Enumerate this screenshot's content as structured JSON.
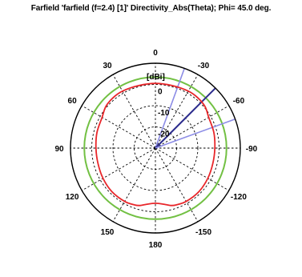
{
  "chart_data": {
    "type": "polar-line",
    "title": "Farfield 'farfield (f=2.4) [1]' Directivity_Abs(Theta); Phi=  45.0 deg.",
    "unit_label": "[dBi]",
    "radial_axis": {
      "min": -30,
      "max": 10,
      "ticks": [
        "0",
        "-10",
        "-20"
      ],
      "tick_values": [
        0,
        -10,
        -20
      ]
    },
    "angular_ticks": [
      {
        "angle": 0,
        "label": "0"
      },
      {
        "angle": -30,
        "label": "-30"
      },
      {
        "angle": -60,
        "label": "-60"
      },
      {
        "angle": -90,
        "label": "-90"
      },
      {
        "angle": -120,
        "label": "-120"
      },
      {
        "angle": -150,
        "label": "-150"
      },
      {
        "angle": 180,
        "label": "180"
      },
      {
        "angle": 150,
        "label": "150"
      },
      {
        "angle": 120,
        "label": "120"
      },
      {
        "angle": 90,
        "label": "90"
      },
      {
        "angle": 60,
        "label": "60"
      },
      {
        "angle": 30,
        "label": "30"
      }
    ],
    "series": [
      {
        "role": "directivity",
        "color": "#e8262a",
        "theta": [
          0,
          -15,
          -30,
          -40,
          -50,
          -60,
          -75,
          -90,
          -105,
          -120,
          -135,
          -150,
          -160,
          -165,
          -170,
          -180,
          170,
          165,
          160,
          150,
          135,
          120,
          105,
          90,
          75,
          60,
          50,
          40,
          30,
          15
        ],
        "values": [
          0.5,
          0.5,
          1,
          1,
          0.5,
          -1,
          -1.5,
          -2,
          -2,
          -1.5,
          -1,
          -1,
          -1.5,
          -2,
          -3,
          -4,
          -3,
          -2,
          -1.5,
          -1,
          -1,
          -1.5,
          -2,
          -2,
          -1.5,
          -1,
          0.5,
          1,
          1,
          0.5
        ]
      },
      {
        "role": "reference-circle",
        "color": "#72c043",
        "level_dB": 3.5
      }
    ],
    "direction_lines": [
      {
        "theta": -20,
        "color": "#8c8ce6"
      },
      {
        "theta": -45,
        "color": "#2a2a8c"
      },
      {
        "theta": -70,
        "color": "#8c8ce6"
      }
    ]
  }
}
